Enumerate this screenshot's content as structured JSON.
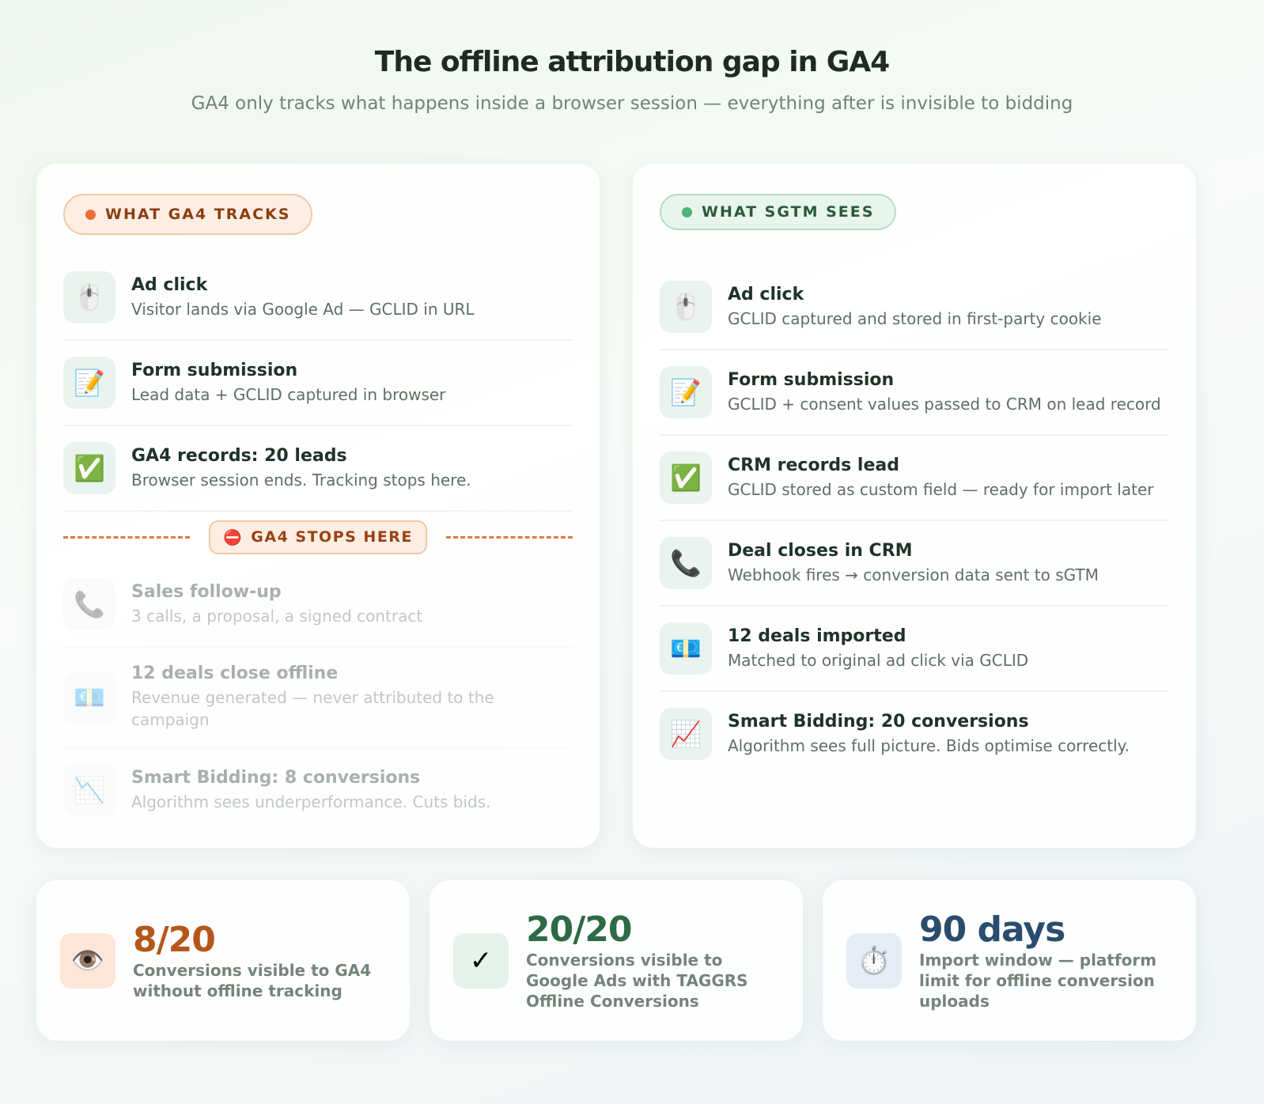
{
  "header": {
    "title": "The offline attribution gap in GA4",
    "subtitle": "GA4 only tracks what happens inside a browser session — everything after is invisible to bidding"
  },
  "left": {
    "badge": "WHAT GA4 TRACKS",
    "steps": [
      {
        "icon": "🖱️",
        "title": "Ad click",
        "text": "Visitor lands via Google Ad — GCLID in URL"
      },
      {
        "icon": "📝",
        "title": "Form submission",
        "text": "Lead data + GCLID captured in browser"
      },
      {
        "icon": "✅",
        "title": "GA4 records: 20 leads",
        "text": "Browser session ends. Tracking stops here."
      }
    ],
    "stop": {
      "icon": "⛔",
      "label": "GA4 STOPS HERE"
    },
    "faded_steps": [
      {
        "icon": "📞",
        "title": "Sales follow-up",
        "text": "3 calls, a proposal, a signed contract"
      },
      {
        "icon": "💶",
        "title": "12 deals close offline",
        "text": "Revenue generated — never attributed to the campaign"
      },
      {
        "icon": "📉",
        "title": "Smart Bidding: 8 conversions",
        "text": "Algorithm sees underperformance. Cuts bids."
      }
    ]
  },
  "right": {
    "badge": "WHAT SGTM SEES",
    "steps": [
      {
        "icon": "🖱️",
        "title": "Ad click",
        "text": "GCLID captured and stored in first-party cookie"
      },
      {
        "icon": "📝",
        "title": "Form submission",
        "text": "GCLID + consent values passed to CRM on lead record"
      },
      {
        "icon": "✅",
        "title": "CRM records lead",
        "text": "GCLID stored as custom field — ready for import later"
      },
      {
        "icon": "📞",
        "title": "Deal closes in CRM",
        "text": "Webhook fires → conversion data sent to sGTM"
      },
      {
        "icon": "💶",
        "title": "12 deals imported",
        "text": "Matched to original ad click via GCLID"
      },
      {
        "icon": "📈",
        "title": "Smart Bidding: 20 conversions",
        "text": "Algorithm sees full picture. Bids optimise correctly."
      }
    ]
  },
  "stats": [
    {
      "icon": "👁️",
      "value": "8/20",
      "text": "Conversions visible to GA4 without offline tracking"
    },
    {
      "icon": "✓",
      "value": "20/20",
      "text": "Conversions visible to Google Ads with TAGGRS Offline Conversions"
    },
    {
      "icon": "⏱️",
      "value": "90 days",
      "text": "Import window — platform limit for offline conversion uploads"
    }
  ]
}
